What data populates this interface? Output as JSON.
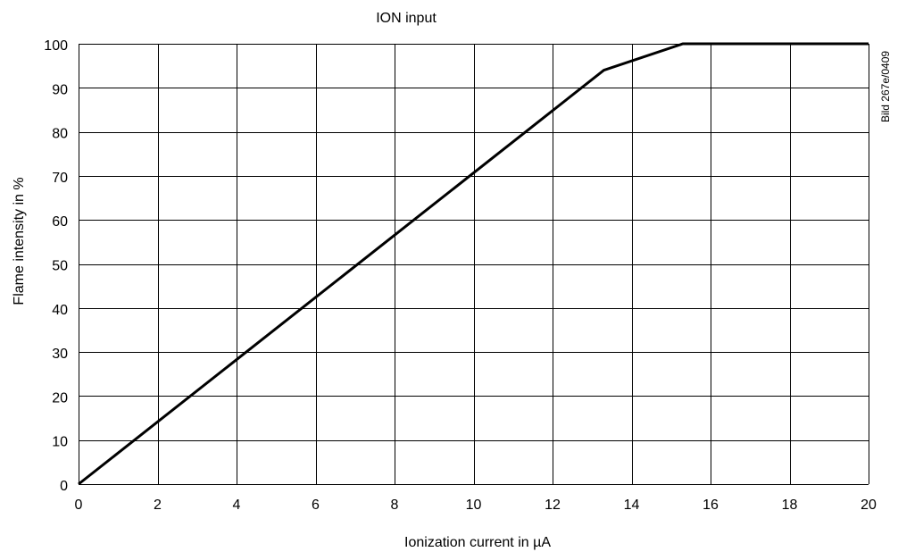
{
  "chart_data": {
    "type": "line",
    "title": "ION input",
    "xlabel": "Ionization current in µA",
    "ylabel": "Flame intensity in %",
    "figure_code": "Bild 267e/0409",
    "xlim": [
      0,
      20
    ],
    "ylim": [
      0,
      100
    ],
    "x_ticks": [
      0,
      2,
      4,
      6,
      8,
      10,
      12,
      14,
      16,
      18,
      20
    ],
    "y_ticks": [
      0,
      10,
      20,
      30,
      40,
      50,
      60,
      70,
      80,
      90,
      100
    ],
    "x_tick_labels": [
      "0",
      "2",
      "4",
      "6",
      "8",
      "10",
      "12",
      "14",
      "16",
      "18",
      "20"
    ],
    "y_tick_labels": [
      "0",
      "10",
      "20",
      "30",
      "40",
      "50",
      "60",
      "70",
      "80",
      "90",
      "100"
    ],
    "grid": true,
    "legend": "none",
    "line_color": "#000000",
    "series": [
      {
        "x": [
          0,
          13.3,
          15.3,
          20
        ],
        "y": [
          0,
          94,
          100,
          100
        ]
      }
    ]
  }
}
